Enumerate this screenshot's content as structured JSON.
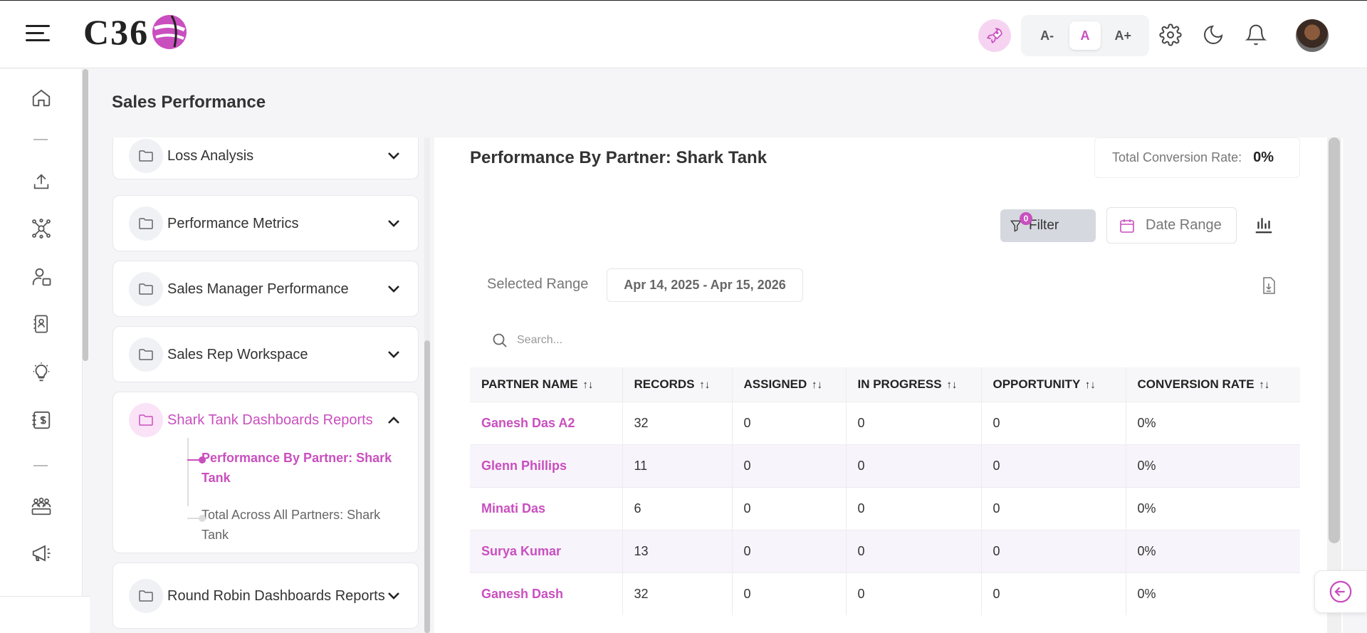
{
  "app": {
    "logo_text": "C36"
  },
  "header": {
    "font_small": "A-",
    "font_normal": "A",
    "font_large": "A+",
    "accent": "#c94fbf"
  },
  "rail": {
    "icons": [
      "home-icon",
      "upload-icon",
      "network-icon",
      "user-manage-icon",
      "contact-card-icon",
      "lightbulb-icon",
      "billing-icon",
      "team-icon",
      "megaphone-icon"
    ]
  },
  "page": {
    "title": "Sales Performance"
  },
  "menu": {
    "items": [
      {
        "label": "Loss Analysis"
      },
      {
        "label": "Performance Metrics"
      },
      {
        "label": "Sales Manager Performance"
      },
      {
        "label": "Sales Rep Workspace"
      },
      {
        "label": "Shark Tank Dashboards Reports"
      },
      {
        "label": "Round Robin Dashboards Reports"
      }
    ],
    "sub_items": [
      {
        "label": "Performance By Partner: Shark Tank"
      },
      {
        "label": "Total Across All Partners: Shark Tank"
      }
    ]
  },
  "report": {
    "title": "Performance By Partner: Shark Tank",
    "conversion_label": "Total Conversion Rate:",
    "conversion_value": "0%",
    "filter_label": "Filter",
    "filter_count": "0",
    "date_range_label": "Date Range",
    "selected_range_label": "Selected Range",
    "selected_range_value": "Apr 14, 2025 - Apr 15, 2026",
    "search_placeholder": "Search..."
  },
  "table": {
    "columns": [
      "PARTNER NAME",
      "RECORDS",
      "ASSIGNED",
      "IN PROGRESS",
      "OPPORTUNITY",
      "CONVERSION RATE"
    ],
    "sort_glyph": "↑↓",
    "rows": [
      [
        "Ganesh Das A2",
        "32",
        "0",
        "0",
        "0",
        "0%"
      ],
      [
        "Glenn Phillips",
        "11",
        "0",
        "0",
        "0",
        "0%"
      ],
      [
        "Minati Das",
        "6",
        "0",
        "0",
        "0",
        "0%"
      ],
      [
        "Surya Kumar",
        "13",
        "0",
        "0",
        "0",
        "0%"
      ],
      [
        "Ganesh Dash",
        "32",
        "0",
        "0",
        "0",
        "0%"
      ]
    ]
  }
}
